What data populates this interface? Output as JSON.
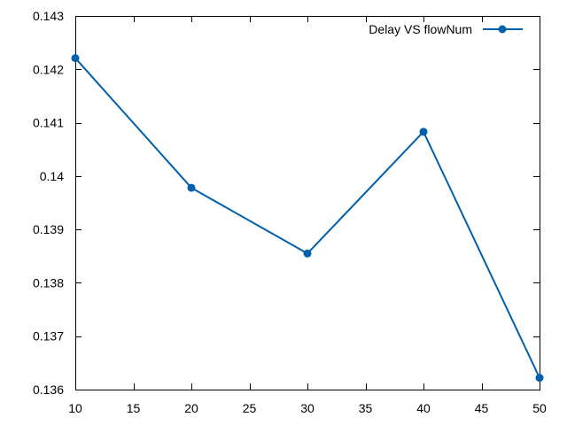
{
  "chart_data": {
    "type": "line",
    "title": "",
    "xlabel": "",
    "ylabel": "",
    "xlim": [
      10,
      50
    ],
    "ylim": [
      0.136,
      0.143
    ],
    "x_ticks": [
      10,
      15,
      20,
      25,
      30,
      35,
      40,
      45,
      50
    ],
    "x_tick_labels": [
      "10",
      "15",
      "20",
      "25",
      "30",
      "35",
      "40",
      "45",
      "50"
    ],
    "y_ticks": [
      0.136,
      0.137,
      0.138,
      0.139,
      0.14,
      0.141,
      0.142,
      0.143
    ],
    "y_tick_labels": [
      "0.136",
      "0.137",
      "0.138",
      "0.139",
      "0.14",
      "0.141",
      "0.142",
      "0.143"
    ],
    "grid": false,
    "legend_position": "top-right",
    "series": [
      {
        "name": "Delay VS flowNum",
        "color": "#0060ad",
        "marker": "circle",
        "x": [
          10,
          20,
          30,
          40,
          50
        ],
        "y": [
          0.14221,
          0.13978,
          0.13855,
          0.14083,
          0.13622
        ]
      }
    ]
  }
}
